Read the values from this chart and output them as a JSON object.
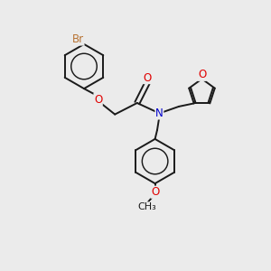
{
  "background_color": "#ebebeb",
  "bond_color": "#1a1a1a",
  "atom_colors": {
    "Br": "#b87333",
    "O": "#e00000",
    "N": "#0000cc",
    "C": "#1a1a1a"
  },
  "figsize": [
    3.0,
    3.0
  ],
  "dpi": 100,
  "bond_lw": 1.4,
  "font_size_atom": 8.5
}
